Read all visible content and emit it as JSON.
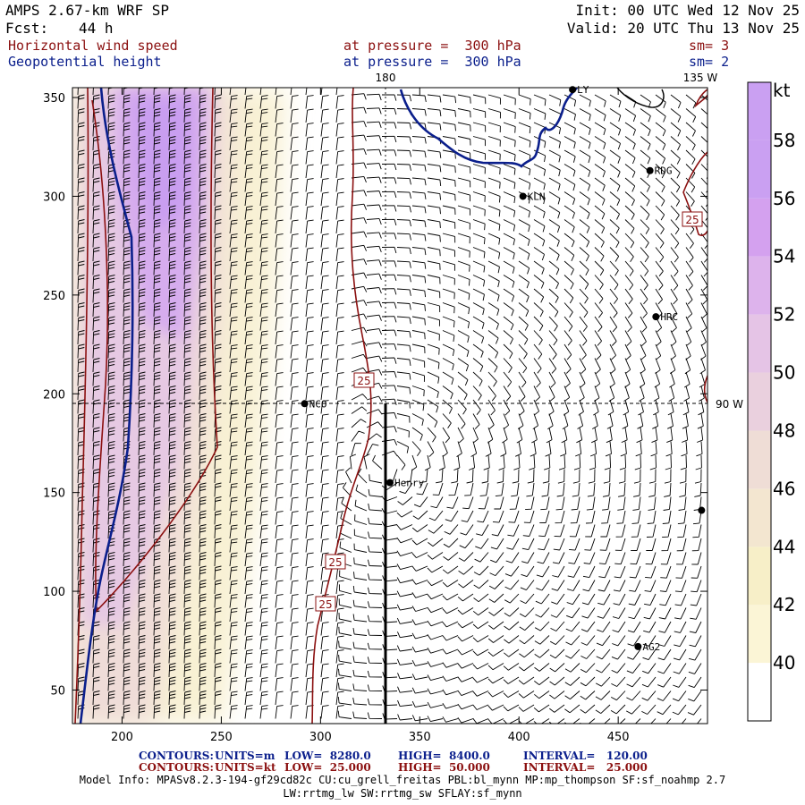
{
  "header": {
    "model": "AMPS 2.67-km WRF SP",
    "fcst_label": "Fcst:",
    "fcst_value": "44 h",
    "init": "Init: 00 UTC Wed 12 Nov 25",
    "valid": "Valid: 20 UTC Thu 13 Nov 25",
    "field1": {
      "name": "Horizontal wind speed",
      "level": "at pressure =  300 hPa",
      "sm": "sm= 3"
    },
    "field2": {
      "name": "Geopotential height",
      "level": "at pressure =  300 hPa",
      "sm": "sm= 2"
    }
  },
  "colors": {
    "red": "#8b1010",
    "blue": "#0b1f8c",
    "black": "#000000"
  },
  "chart_data": {
    "type": "heatmap",
    "title": "Horizontal wind speed / Geopotential height at 300 hPa",
    "x_ticks": [
      200,
      250,
      300,
      350,
      400,
      450
    ],
    "y_ticks": [
      50,
      100,
      150,
      200,
      250,
      300,
      350
    ],
    "xlim": [
      175,
      495
    ],
    "ylim": [
      33,
      355
    ],
    "colorbar": {
      "unit": "kt",
      "levels": [
        40,
        42,
        44,
        46,
        48,
        50,
        52,
        54,
        56,
        58
      ],
      "colors": [
        "#ffffff",
        "#fbf5d6",
        "#f7efc8",
        "#f3e6d0",
        "#efddd6",
        "#ead0de",
        "#e5c4e6",
        "#ddb3ec",
        "#d4a1ef",
        "#caa0f2"
      ]
    },
    "grid_labels": {
      "lon_top_center": "180",
      "lon_top_right": "135 W",
      "lat_right": "90 W"
    },
    "contour_labels": [
      "25",
      "25",
      "25",
      "25"
    ],
    "stations": [
      {
        "name": "LY",
        "x": 427,
        "y": 354
      },
      {
        "name": "RDG",
        "x": 466,
        "y": 313
      },
      {
        "name": "KLN",
        "x": 402,
        "y": 300
      },
      {
        "name": "HRC",
        "x": 469,
        "y": 239
      },
      {
        "name": "NCO",
        "x": 292,
        "y": 195
      },
      {
        "name": "Henry",
        "x": 335,
        "y": 155
      },
      {
        "name": "AG2",
        "x": 460,
        "y": 72
      },
      {
        "name": "",
        "x": 492,
        "y": 141
      }
    ],
    "cross_section": {
      "x": 335,
      "y_from": 33,
      "y_to": 195
    },
    "legend": {
      "contours1": {
        "label": "CONTOURS:",
        "units": "UNITS=m",
        "low": "LOW=  8280.0",
        "high": "HIGH=  8400.0",
        "interval": "INTERVAL=   120.00"
      },
      "contours2": {
        "label": "CONTOURS:",
        "units": "UNITS=kt",
        "low": "LOW=  25.000",
        "high": "HIGH=  50.000",
        "interval": "INTERVAL=   25.000"
      }
    }
  },
  "model_info": {
    "line1": "Model Info: MPASv8.2.3-194-gf29cd82c CU:cu_grell_freitas PBL:bl_mynn MP:mp_thompson SF:sf_noahmp 2.7",
    "line2": "LW:rrtmg_lw SW:rrtmg_sw SFLAY:sf_mynn"
  }
}
